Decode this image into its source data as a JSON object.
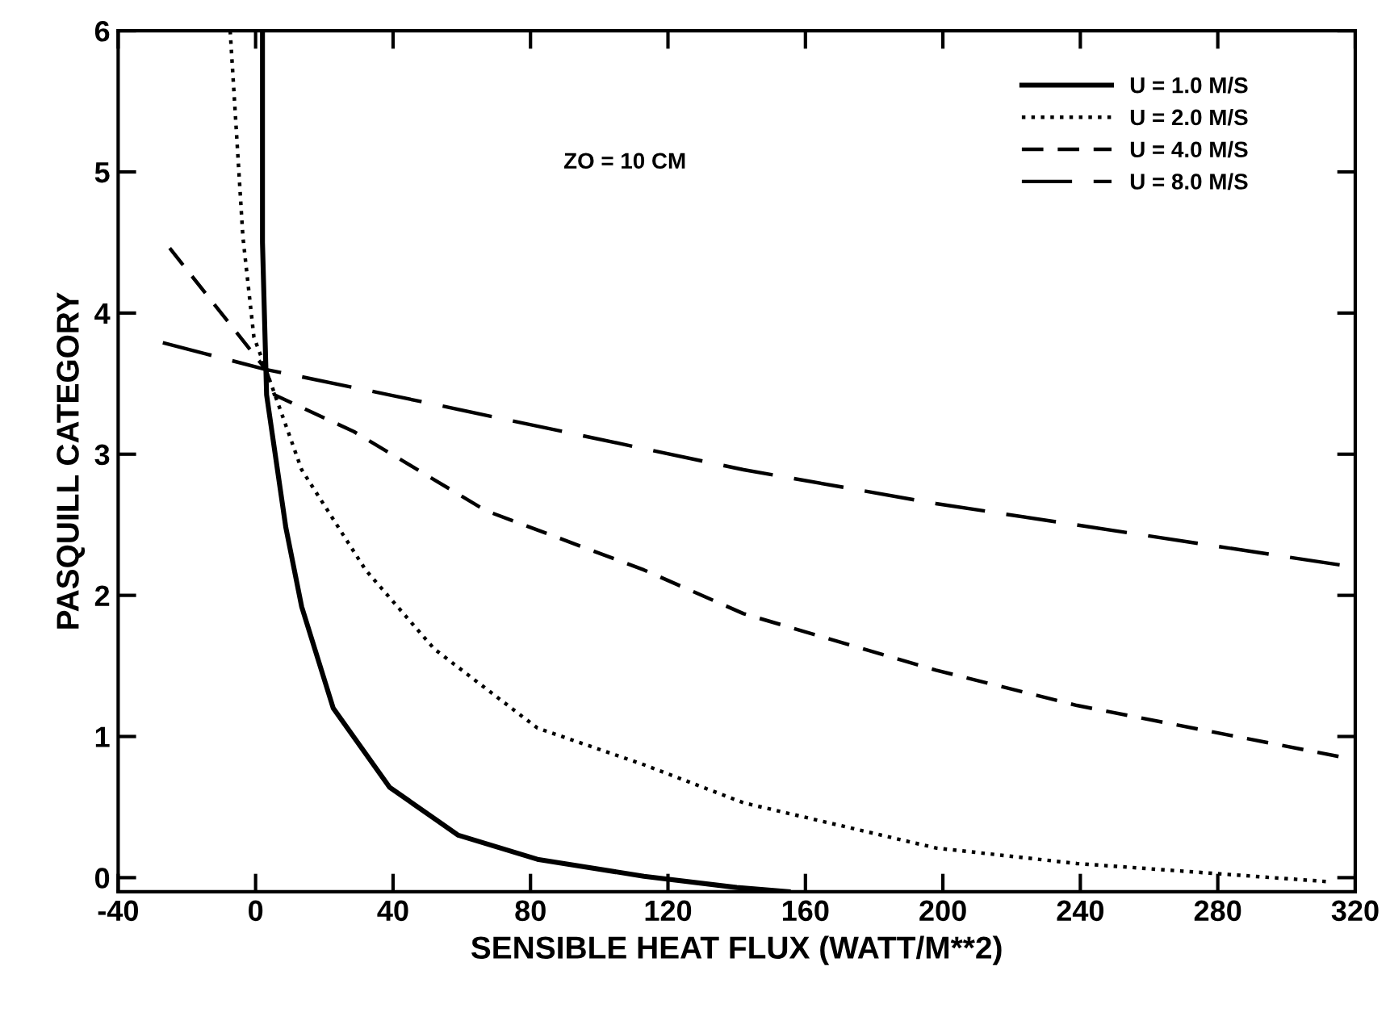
{
  "chart_data": {
    "type": "line",
    "xlabel": "SENSIBLE HEAT FLUX (WATT/M**2)",
    "ylabel": "PASQUILL CATEGORY",
    "annotations": [
      "ZO = 10 CM"
    ],
    "xlim": [
      -40,
      320
    ],
    "xticks": [
      -40,
      0,
      40,
      80,
      120,
      160,
      200,
      240,
      280,
      320
    ],
    "ylim": [
      -0.1,
      6
    ],
    "yticks": [
      0,
      1,
      2,
      3,
      4,
      5,
      6
    ],
    "grid": false,
    "legend": "top right",
    "marker": "none",
    "series": [
      {
        "name": "U = 1.0 M/S",
        "color": "#000000",
        "line_style": "solid",
        "x": [
          2,
          2,
          3,
          3.2,
          8.8,
          13.4,
          22.6,
          39,
          59,
          82,
          113,
          140,
          155
        ],
        "values": [
          6,
          4.5,
          3.6,
          3.42,
          2.48,
          1.92,
          1.2,
          0.64,
          0.3,
          0.13,
          0.01,
          -0.07,
          -0.1
        ]
      },
      {
        "name": "U = 2.0 M/S",
        "color": "#000000",
        "line_style": "dotted",
        "x": [
          -7.4,
          -3.7,
          -0.5,
          3,
          13.4,
          32,
          52,
          82,
          113,
          142,
          198,
          239,
          313
        ],
        "values": [
          6,
          4.54,
          3.83,
          3.6,
          2.89,
          2.18,
          1.62,
          1.06,
          0.8,
          0.53,
          0.21,
          0.1,
          -0.03
        ]
      },
      {
        "name": "U = 4.0 M/S",
        "color": "#000000",
        "line_style": "dashed",
        "x": [
          -25,
          3,
          5.5,
          28.6,
          67,
          113,
          142,
          198,
          239,
          317
        ],
        "values": [
          4.46,
          3.6,
          3.42,
          3.16,
          2.6,
          2.18,
          1.87,
          1.47,
          1.22,
          0.85
        ]
      },
      {
        "name": "U = 8.0 M/S",
        "color": "#000000",
        "line_style": "longdash",
        "x": [
          -27,
          3,
          39,
          142,
          198,
          317
        ],
        "values": [
          3.79,
          3.6,
          3.42,
          2.89,
          2.65,
          2.21
        ]
      }
    ]
  }
}
